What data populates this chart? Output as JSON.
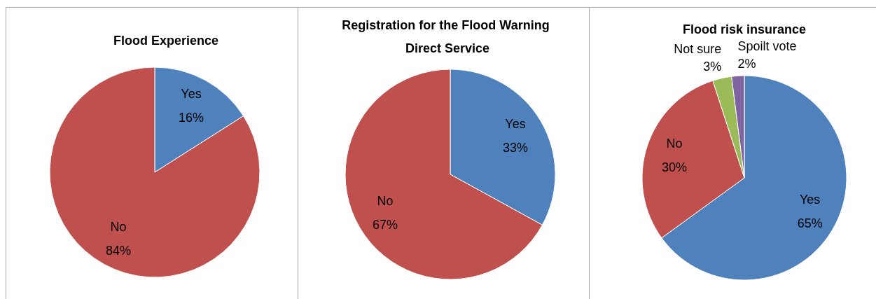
{
  "chart_data": [
    {
      "type": "pie",
      "title": "Flood Experience",
      "categories": [
        "Yes",
        "No"
      ],
      "values": [
        16,
        84
      ],
      "colors": [
        "#4f81bd",
        "#c0504d"
      ],
      "value_labels": [
        "16%",
        "84%"
      ]
    },
    {
      "type": "pie",
      "title": "Registration for the Flood Warning Direct Service",
      "categories": [
        "Yes",
        "No"
      ],
      "values": [
        33,
        67
      ],
      "colors": [
        "#4f81bd",
        "#c0504d"
      ],
      "value_labels": [
        "33%",
        "67%"
      ]
    },
    {
      "type": "pie",
      "title": "Flood risk insurance",
      "categories": [
        "Yes",
        "No",
        "Not sure",
        "Spoilt vote"
      ],
      "values": [
        65,
        30,
        3,
        2
      ],
      "colors": [
        "#4f81bd",
        "#c0504d",
        "#9bbb59",
        "#8064a2"
      ],
      "value_labels": [
        "65%",
        "30%",
        "3%",
        "2%"
      ]
    }
  ]
}
